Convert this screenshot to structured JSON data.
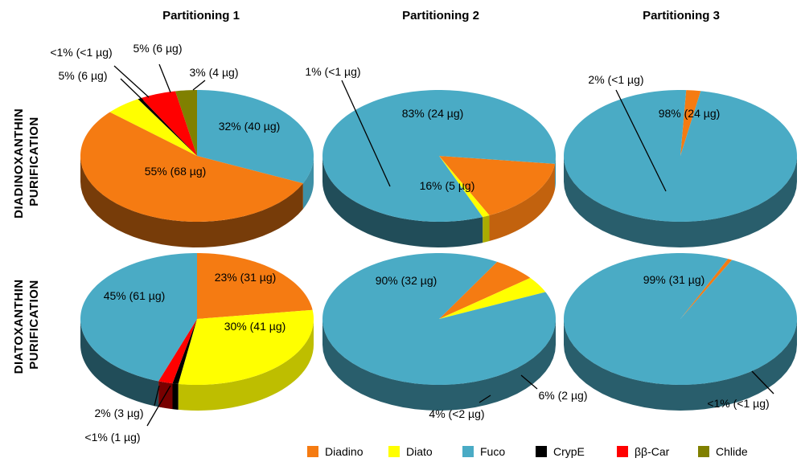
{
  "chart_data": {
    "type": "pie",
    "columns": [
      "Partitioning 1",
      "Partitioning 2",
      "Partitioning 3"
    ],
    "rows": [
      "DIADINOXANTHIN PURIFICATION",
      "DIATOXANTHIN PURIFICATION"
    ],
    "legend": [
      {
        "key": "diadino",
        "name": "Diadino",
        "color": "#f57b12"
      },
      {
        "key": "diato",
        "name": "Diato",
        "color": "#ffff00"
      },
      {
        "key": "fuco",
        "name": "Fuco",
        "color": "#4aabc5"
      },
      {
        "key": "crype",
        "name": "CrypE",
        "color": "#000000"
      },
      {
        "key": "bbcar",
        "name": "ββ-Car",
        "color": "#ff0000"
      },
      {
        "key": "chlide",
        "name": "Chlide",
        "color": "#808000"
      }
    ],
    "pies": [
      {
        "row": 0,
        "col": 0,
        "slices": [
          {
            "key": "fuco",
            "value": 32,
            "label": "32% (40 µg)"
          },
          {
            "key": "diadino",
            "value": 55,
            "label": "55% (68 µg)"
          },
          {
            "key": "diato",
            "value": 5,
            "label": "5% (6 µg)"
          },
          {
            "key": "crype",
            "value": 0.5,
            "label": "<1% (<1 µg)"
          },
          {
            "key": "bbcar",
            "value": 5,
            "label": "5% (6 µg)"
          },
          {
            "key": "chlide",
            "value": 3,
            "label": "3% (4 µg)"
          }
        ]
      },
      {
        "row": 0,
        "col": 1,
        "slices": [
          {
            "key": "diadino",
            "value": 16,
            "label": "16% (5 µg)"
          },
          {
            "key": "diato",
            "value": 1,
            "label": "1% (<1 µg)"
          },
          {
            "key": "fuco",
            "value": 83,
            "label": "83% (24 µg)"
          }
        ]
      },
      {
        "row": 0,
        "col": 2,
        "slices": [
          {
            "key": "diadino",
            "value": 2,
            "label": "2% (<1 µg)"
          },
          {
            "key": "fuco",
            "value": 98,
            "label": "98% (24 µg)"
          }
        ]
      },
      {
        "row": 1,
        "col": 0,
        "slices": [
          {
            "key": "diadino",
            "value": 23,
            "label": "23% (31 µg)"
          },
          {
            "key": "diato",
            "value": 30,
            "label": "30% (41 µg)"
          },
          {
            "key": "crype",
            "value": 0.8,
            "label": "<1% (1 µg)"
          },
          {
            "key": "bbcar",
            "value": 2,
            "label": "2% (3 µg)"
          },
          {
            "key": "fuco",
            "value": 45,
            "label": "45% (61 µg)"
          }
        ]
      },
      {
        "row": 1,
        "col": 1,
        "slices": [
          {
            "key": "diadino",
            "value": 6,
            "label": "6% (2 µg)"
          },
          {
            "key": "diato",
            "value": 4,
            "label": "4% (<2 µg)"
          },
          {
            "key": "fuco",
            "value": 90,
            "label": "90% (32 µg)"
          }
        ]
      },
      {
        "row": 1,
        "col": 2,
        "slices": [
          {
            "key": "diadino",
            "value": 0.6,
            "label": "<1% (<1 µg)"
          },
          {
            "key": "fuco",
            "value": 99,
            "label": "99% (31 µg)"
          }
        ]
      }
    ]
  }
}
